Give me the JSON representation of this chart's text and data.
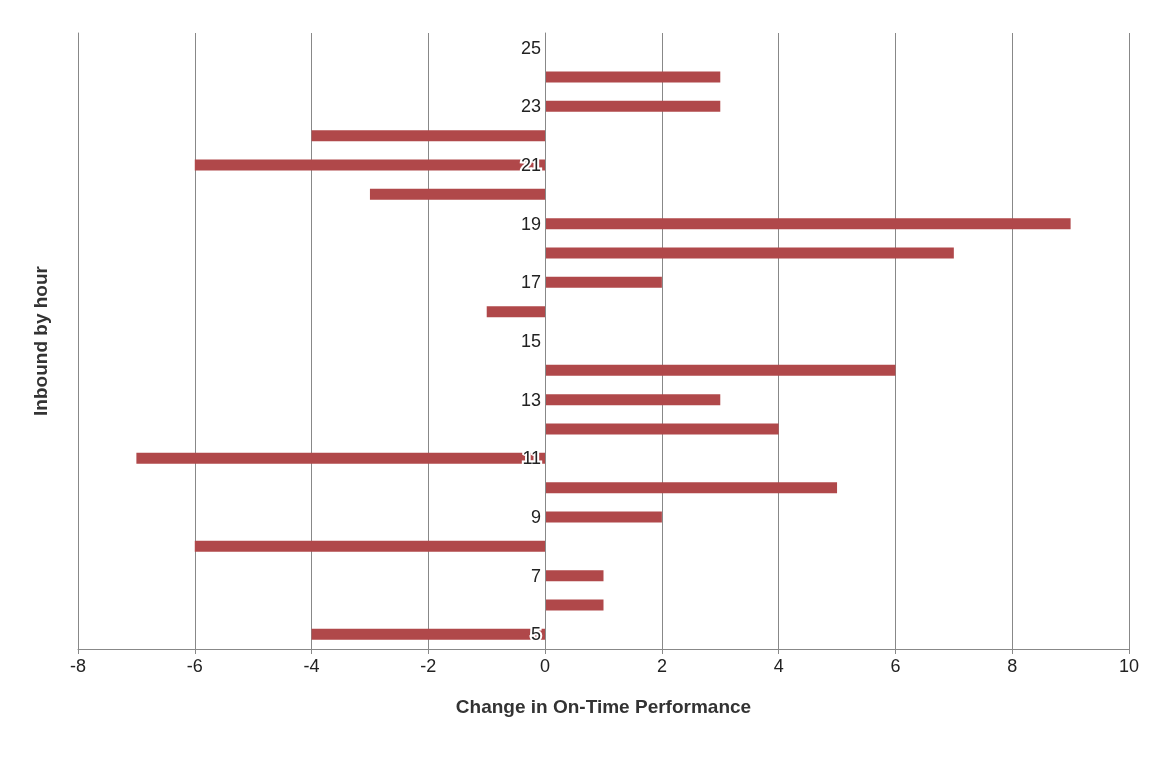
{
  "chart_data": {
    "type": "bar",
    "orientation": "horizontal",
    "xlabel": "Change in On-Time Performance",
    "ylabel": "Inbound by hour",
    "categories": [
      "25",
      null,
      "23",
      null,
      "21",
      null,
      "19",
      null,
      "17",
      null,
      "15",
      null,
      "13",
      null,
      "11",
      null,
      "9",
      null,
      "7",
      null,
      "5"
    ],
    "values": [
      null,
      3,
      3,
      -4,
      -6,
      -3,
      9,
      7,
      2,
      -1,
      null,
      6,
      3,
      4,
      -7,
      5,
      2,
      -6,
      1,
      1,
      -4
    ],
    "color": "#b0484a",
    "xlim": [
      -8,
      10
    ],
    "xticks": [
      -8,
      -6,
      -4,
      -2,
      0,
      2,
      4,
      6,
      8,
      10
    ],
    "grid": "x"
  }
}
